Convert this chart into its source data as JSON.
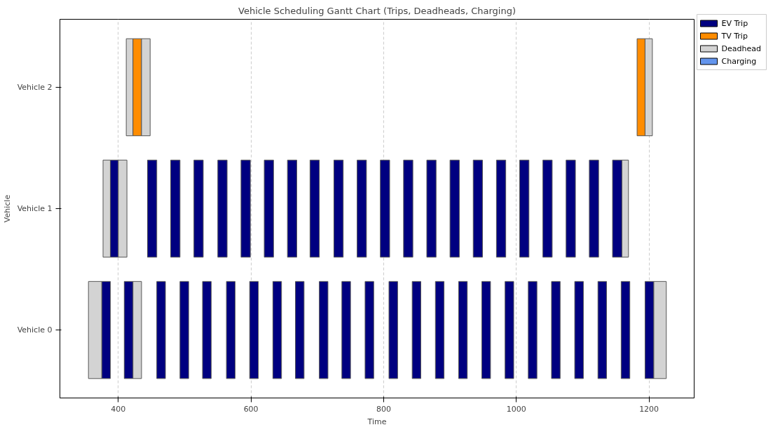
{
  "chart_data": {
    "type": "bar",
    "orientation": "horizontal",
    "title": "Vehicle Scheduling Gantt Chart (Trips, Deadheads, Charging)",
    "xlabel": "Time",
    "ylabel": "Vehicle",
    "categories": [
      "Vehicle 2",
      "Vehicle 1",
      "Vehicle 0"
    ],
    "xlim": [
      312,
      1268
    ],
    "xticks": [
      400,
      600,
      800,
      1000,
      1200
    ],
    "grid": "x",
    "legend": "top right",
    "series": [
      {
        "name": "EV Trip",
        "color": "#000080",
        "values": [
          null,
          12,
          13
        ],
        "base": [
          null,
          388,
          375
        ]
      },
      {
        "name": "TV Trip",
        "color": "#ff8c00",
        "values": [
          13,
          null,
          null
        ],
        "base": [
          422,
          null,
          null
        ]
      },
      {
        "name": "Deadhead",
        "color": "#d3d3d3",
        "values": [
          10,
          11,
          20
        ],
        "base": [
          412,
          377,
          355
        ]
      },
      {
        "name": "Charging",
        "color": "#6495ed",
        "values": [
          null,
          null,
          null
        ],
        "base": [
          null,
          null,
          null
        ]
      },
      {
        "color": "#d3d3d3",
        "values": [
          13,
          13,
          13
        ],
        "base": [
          435,
          400,
          422
        ]
      },
      {
        "color": "#000080",
        "values": [
          null,
          null,
          13
        ],
        "base": [
          null,
          null,
          409
        ]
      },
      {
        "color": "#ff8c00",
        "values": [
          12,
          null,
          null
        ],
        "base": [
          1182,
          null,
          null
        ]
      },
      {
        "color": "#d3d3d3",
        "values": [
          11,
          10,
          19
        ],
        "base": [
          1194,
          1159,
          1207
        ]
      },
      {
        "color": "#000080",
        "values": [
          null,
          14,
          13
        ],
        "base": [
          null,
          444,
          458
        ]
      },
      {
        "color": "#000080",
        "values": [
          null,
          14,
          13
        ],
        "base": [
          null,
          479,
          493
        ]
      },
      {
        "color": "#000080",
        "values": [
          null,
          14,
          13
        ],
        "base": [
          null,
          514,
          527
        ]
      },
      {
        "color": "#000080",
        "values": [
          null,
          14,
          13
        ],
        "base": [
          null,
          550,
          563
        ]
      },
      {
        "color": "#000080",
        "values": [
          null,
          14,
          13
        ],
        "base": [
          null,
          585,
          598
        ]
      },
      {
        "color": "#000080",
        "values": [
          null,
          14,
          13
        ],
        "base": [
          null,
          620,
          633
        ]
      },
      {
        "color": "#000080",
        "values": [
          null,
          14,
          13
        ],
        "base": [
          null,
          655,
          667
        ]
      },
      {
        "color": "#000080",
        "values": [
          null,
          14,
          13
        ],
        "base": [
          null,
          689,
          703
        ]
      },
      {
        "color": "#000080",
        "values": [
          null,
          14,
          13
        ],
        "base": [
          null,
          725,
          737
        ]
      },
      {
        "color": "#000080",
        "values": [
          null,
          14,
          13
        ],
        "base": [
          null,
          760,
          772
        ]
      },
      {
        "color": "#000080",
        "values": [
          null,
          14,
          13
        ],
        "base": [
          null,
          795,
          808
        ]
      },
      {
        "color": "#000080",
        "values": [
          null,
          14,
          13
        ],
        "base": [
          null,
          830,
          843
        ]
      },
      {
        "color": "#000080",
        "values": [
          null,
          14,
          13
        ],
        "base": [
          null,
          865,
          878
        ]
      },
      {
        "color": "#000080",
        "values": [
          null,
          14,
          13
        ],
        "base": [
          null,
          900,
          913
        ]
      },
      {
        "color": "#000080",
        "values": [
          null,
          14,
          13
        ],
        "base": [
          null,
          935,
          948
        ]
      },
      {
        "color": "#000080",
        "values": [
          null,
          14,
          13
        ],
        "base": [
          null,
          970,
          983
        ]
      },
      {
        "color": "#000080",
        "values": [
          null,
          14,
          13
        ],
        "base": [
          null,
          1005,
          1018
        ]
      },
      {
        "color": "#000080",
        "values": [
          null,
          14,
          13
        ],
        "base": [
          null,
          1040,
          1053
        ]
      },
      {
        "color": "#000080",
        "values": [
          null,
          14,
          13
        ],
        "base": [
          null,
          1075,
          1088
        ]
      },
      {
        "color": "#000080",
        "values": [
          null,
          14,
          13
        ],
        "base": [
          null,
          1110,
          1123
        ]
      },
      {
        "color": "#000080",
        "values": [
          null,
          14,
          13
        ],
        "base": [
          null,
          1145,
          1158
        ]
      },
      {
        "color": "#000080",
        "values": [
          null,
          null,
          13
        ],
        "base": [
          null,
          null,
          1194
        ]
      }
    ]
  }
}
